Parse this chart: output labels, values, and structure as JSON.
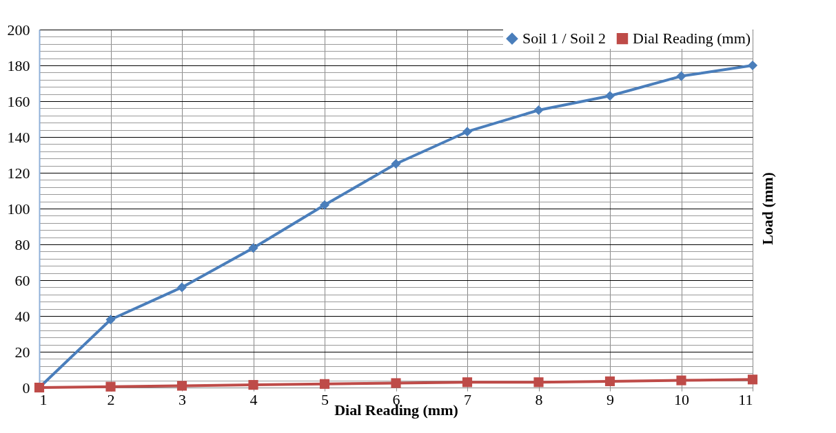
{
  "chart_data": {
    "type": "line",
    "xlabel": "Dial Reading (mm)",
    "ylabel": "Load (mm)",
    "categories": [
      "1",
      "2",
      "3",
      "4",
      "5",
      "6",
      "7",
      "8",
      "9",
      "10",
      "11"
    ],
    "series": [
      {
        "name": "Soil 1 / Soil 2",
        "color": "#4a7ebb",
        "marker": "diamond",
        "values": [
          0,
          38,
          56,
          78,
          102,
          125,
          143,
          155,
          163,
          174,
          180
        ]
      },
      {
        "name": "Dial Reading (mm)",
        "color": "#be4b48",
        "marker": "square",
        "values": [
          0,
          0.5,
          1,
          1.5,
          2,
          2.5,
          3,
          3,
          3.5,
          4,
          4.5
        ]
      }
    ],
    "ylim": [
      0,
      200
    ],
    "yticks": [
      0,
      {
        "value": 4,
        "label": null
      },
      {
        "value": 8,
        "label": null
      },
      {
        "value": 12,
        "label": null
      },
      {
        "value": 16,
        "label": null
      },
      20,
      {
        "value": 24,
        "label": null
      },
      {
        "value": 28,
        "label": null
      },
      {
        "value": 32,
        "label": null
      },
      {
        "value": 36,
        "label": null
      },
      40,
      {
        "value": 44,
        "label": null
      },
      {
        "value": 48,
        "label": null
      },
      {
        "value": 52,
        "label": null
      },
      {
        "value": 56,
        "label": null
      },
      60,
      {
        "value": 64,
        "label": null
      },
      {
        "value": 68,
        "label": null
      },
      {
        "value": 72,
        "label": null
      },
      {
        "value": 76,
        "label": null
      },
      80,
      {
        "value": 84,
        "label": null
      },
      {
        "value": 88,
        "label": null
      },
      {
        "value": 92,
        "label": null
      },
      {
        "value": 96,
        "label": null
      },
      100,
      {
        "value": 104,
        "label": null
      },
      {
        "value": 108,
        "label": null
      },
      {
        "value": 112,
        "label": null
      },
      {
        "value": 116,
        "label": null
      },
      120,
      {
        "value": 124,
        "label": null
      },
      {
        "value": 128,
        "label": null
      },
      {
        "value": 132,
        "label": null
      },
      {
        "value": 136,
        "label": null
      },
      140,
      {
        "value": 144,
        "label": null
      },
      {
        "value": 148,
        "label": null
      },
      {
        "value": 152,
        "label": null
      },
      {
        "value": 156,
        "label": null
      },
      160,
      {
        "value": 164,
        "label": null
      },
      {
        "value": 168,
        "label": null
      },
      {
        "value": 172,
        "label": null
      },
      {
        "value": 176,
        "label": null
      },
      180,
      {
        "value": 184,
        "label": null
      },
      {
        "value": 188,
        "label": null
      },
      {
        "value": 192,
        "label": null
      },
      {
        "value": 196,
        "label": null
      },
      200
    ],
    "grid": true,
    "legend": "top right",
    "line_style": "solid"
  }
}
